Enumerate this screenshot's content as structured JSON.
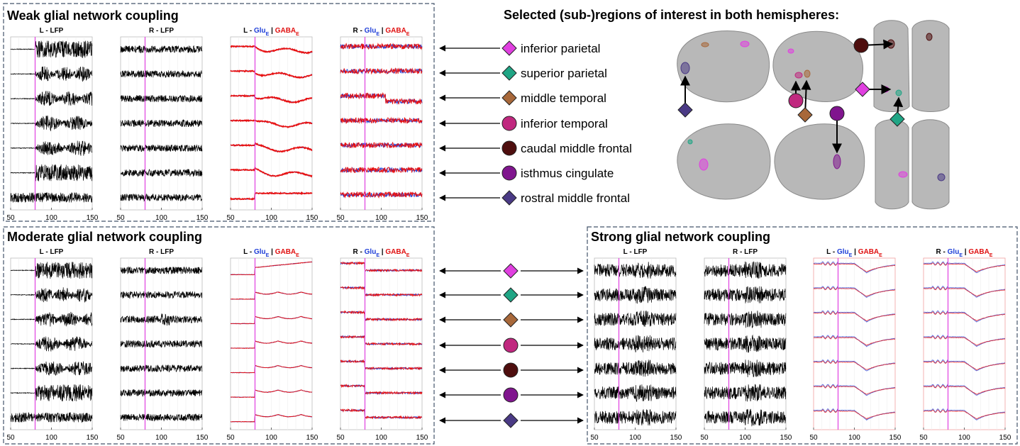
{
  "panels": [
    {
      "title": "Weak glial network coupling"
    },
    {
      "title": "Moderate glial network coupling"
    },
    {
      "title": "Strong glial network coupling"
    }
  ],
  "plot_titles": [
    {
      "type": "lfp",
      "text": "L - LFP"
    },
    {
      "type": "lfp",
      "text": "R - LFP"
    },
    {
      "type": "glu",
      "side": "L - ",
      "glu": "Glu",
      "glu_sub": "E",
      "sep": " | ",
      "gaba": "GABA",
      "gaba_sub": "E"
    },
    {
      "type": "glu",
      "side": "R - ",
      "glu": "Glu",
      "glu_sub": "E",
      "sep": " | ",
      "gaba": "GABA",
      "gaba_sub": "E"
    }
  ],
  "xlim": [
    50,
    150
  ],
  "xticks": [
    50,
    100,
    150
  ],
  "stimulus_x": 80,
  "regions_title": "Selected (sub-)regions of interest in both hemispheres:",
  "regions": [
    {
      "name": "inferior parietal",
      "color": "#e040e0",
      "shape": "diamond"
    },
    {
      "name": "superior parietal",
      "color": "#20a585",
      "shape": "diamond"
    },
    {
      "name": "middle temporal",
      "color": "#a8683a",
      "shape": "diamond"
    },
    {
      "name": "inferior temporal",
      "color": "#c0287f",
      "shape": "circle"
    },
    {
      "name": "caudal middle frontal",
      "color": "#4e0e0e",
      "shape": "circle"
    },
    {
      "name": "isthmus cingulate",
      "color": "#80158e",
      "shape": "circle"
    },
    {
      "name": "rostral middle frontal",
      "color": "#4a3a85",
      "shape": "diamond"
    }
  ]
}
